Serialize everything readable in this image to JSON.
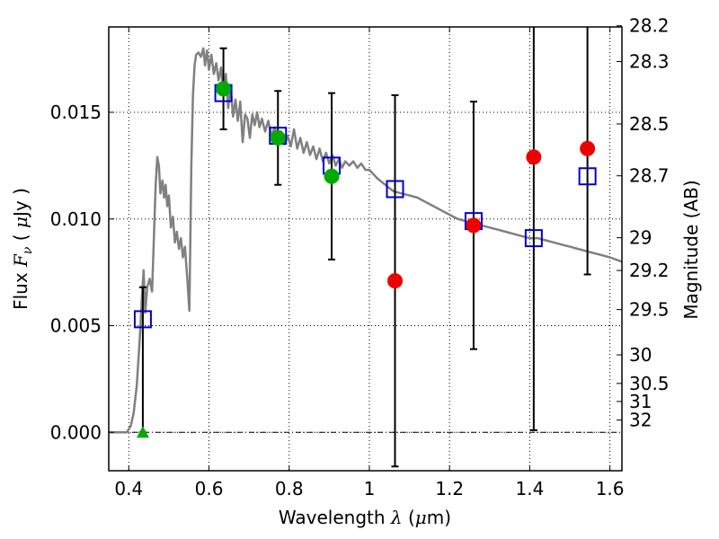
{
  "chart_data": {
    "type": "scatter",
    "title": "",
    "xlabel": {
      "text": "Wavelength",
      "symbol": "λ",
      "unit_prefix": "(",
      "unit_mu": "μ",
      "unit_suffix": "m)"
    },
    "ylabel": {
      "text": "Flux",
      "symbol": "F",
      "subscript": "ν",
      "unit_prefix": "( ",
      "unit_mu": "μ",
      "unit_suffix": "Jy )"
    },
    "y2label": "Magnitude (AB)",
    "xlim": [
      0.35,
      1.63
    ],
    "ylim": [
      -0.0018,
      0.019
    ],
    "grid": true,
    "x_ticks": [
      {
        "value": 0.4,
        "label": "0.4"
      },
      {
        "value": 0.6,
        "label": "0.6"
      },
      {
        "value": 0.8,
        "label": "0.8"
      },
      {
        "value": 1.0,
        "label": "1"
      },
      {
        "value": 1.2,
        "label": "1.2"
      },
      {
        "value": 1.4,
        "label": "1.4"
      },
      {
        "value": 1.6,
        "label": "1.6"
      }
    ],
    "y_ticks": [
      {
        "value": 0.0,
        "label": "0.000"
      },
      {
        "value": 0.005,
        "label": "0.005"
      },
      {
        "value": 0.01,
        "label": "0.010"
      },
      {
        "value": 0.015,
        "label": "0.015"
      }
    ],
    "magnitude_ticks": [
      {
        "mag": 28.2,
        "label": "28.2"
      },
      {
        "mag": 28.3,
        "label": "28.3"
      },
      {
        "mag": 28.5,
        "label": "28.5"
      },
      {
        "mag": 28.7,
        "label": "28.7"
      },
      {
        "mag": 29.0,
        "label": "29"
      },
      {
        "mag": 29.2,
        "label": "29.2"
      },
      {
        "mag": 29.5,
        "label": "29.5"
      },
      {
        "mag": 30.0,
        "label": "30"
      },
      {
        "mag": 30.5,
        "label": "30.5"
      },
      {
        "mag": 31.0,
        "label": "31"
      },
      {
        "mag": 32.0,
        "label": "32"
      }
    ],
    "zero_line": {
      "y": 0.0,
      "style": "dash-dot"
    },
    "colors": {
      "model": "#808080",
      "model_photometry": "#0000cc",
      "detected": "#00aa00",
      "undetected": "#ee0000",
      "error_bars": "#000000"
    },
    "model_sed": [
      [
        0.35,
        0.0
      ],
      [
        0.395,
        0.0
      ],
      [
        0.405,
        0.0003
      ],
      [
        0.412,
        0.0009
      ],
      [
        0.42,
        0.0022
      ],
      [
        0.428,
        0.0046
      ],
      [
        0.433,
        0.0064
      ],
      [
        0.437,
        0.0076
      ],
      [
        0.441,
        0.0056
      ],
      [
        0.446,
        0.0068
      ],
      [
        0.452,
        0.0072
      ],
      [
        0.458,
        0.0066
      ],
      [
        0.462,
        0.0088
      ],
      [
        0.467,
        0.0116
      ],
      [
        0.471,
        0.0129
      ],
      [
        0.475,
        0.0125
      ],
      [
        0.479,
        0.0112
      ],
      [
        0.484,
        0.0118
      ],
      [
        0.488,
        0.011
      ],
      [
        0.492,
        0.0116
      ],
      [
        0.496,
        0.0106
      ],
      [
        0.5,
        0.0111
      ],
      [
        0.505,
        0.0096
      ],
      [
        0.51,
        0.0101
      ],
      [
        0.515,
        0.0089
      ],
      [
        0.52,
        0.0094
      ],
      [
        0.525,
        0.0086
      ],
      [
        0.53,
        0.0091
      ],
      [
        0.535,
        0.0082
      ],
      [
        0.54,
        0.0087
      ],
      [
        0.546,
        0.0072
      ],
      [
        0.551,
        0.0057
      ],
      [
        0.556,
        0.0125
      ],
      [
        0.56,
        0.0158
      ],
      [
        0.564,
        0.0172
      ],
      [
        0.568,
        0.0177
      ],
      [
        0.574,
        0.0178
      ],
      [
        0.58,
        0.0176
      ],
      [
        0.586,
        0.018
      ],
      [
        0.59,
        0.0172
      ],
      [
        0.595,
        0.0179
      ],
      [
        0.6,
        0.017
      ],
      [
        0.606,
        0.0177
      ],
      [
        0.612,
        0.0168
      ],
      [
        0.618,
        0.0173
      ],
      [
        0.624,
        0.0165
      ],
      [
        0.63,
        0.0171
      ],
      [
        0.636,
        0.0158
      ],
      [
        0.642,
        0.0168
      ],
      [
        0.648,
        0.0152
      ],
      [
        0.654,
        0.0162
      ],
      [
        0.66,
        0.0148
      ],
      [
        0.666,
        0.0156
      ],
      [
        0.672,
        0.0146
      ],
      [
        0.678,
        0.0155
      ],
      [
        0.684,
        0.0136
      ],
      [
        0.69,
        0.0149
      ],
      [
        0.696,
        0.0147
      ],
      [
        0.702,
        0.0138
      ],
      [
        0.708,
        0.0149
      ],
      [
        0.714,
        0.0144
      ],
      [
        0.72,
        0.015
      ],
      [
        0.726,
        0.0143
      ],
      [
        0.732,
        0.0147
      ],
      [
        0.74,
        0.0141
      ],
      [
        0.748,
        0.0146
      ],
      [
        0.756,
        0.0139
      ],
      [
        0.764,
        0.0143
      ],
      [
        0.772,
        0.0137
      ],
      [
        0.78,
        0.0141
      ],
      [
        0.788,
        0.0135
      ],
      [
        0.796,
        0.0139
      ],
      [
        0.804,
        0.0134
      ],
      [
        0.812,
        0.0142
      ],
      [
        0.82,
        0.0133
      ],
      [
        0.828,
        0.0138
      ],
      [
        0.836,
        0.0131
      ],
      [
        0.844,
        0.0136
      ],
      [
        0.852,
        0.013
      ],
      [
        0.86,
        0.0134
      ],
      [
        0.868,
        0.0128
      ],
      [
        0.876,
        0.0133
      ],
      [
        0.884,
        0.0127
      ],
      [
        0.892,
        0.0131
      ],
      [
        0.9,
        0.0126
      ],
      [
        0.908,
        0.013
      ],
      [
        0.916,
        0.0125
      ],
      [
        0.924,
        0.0128
      ],
      [
        0.932,
        0.0124
      ],
      [
        0.94,
        0.0127
      ],
      [
        0.95,
        0.0125
      ],
      [
        0.96,
        0.0127
      ],
      [
        0.97,
        0.0124
      ],
      [
        0.98,
        0.0126
      ],
      [
        0.99,
        0.0123
      ],
      [
        1.0,
        0.0123
      ],
      [
        1.02,
        0.0119
      ],
      [
        1.04,
        0.0116
      ],
      [
        1.06,
        0.0113
      ],
      [
        1.08,
        0.0112
      ],
      [
        1.1,
        0.0111
      ],
      [
        1.12,
        0.011
      ],
      [
        1.14,
        0.0108
      ],
      [
        1.16,
        0.0106
      ],
      [
        1.18,
        0.0104
      ],
      [
        1.2,
        0.0102
      ],
      [
        1.22,
        0.01
      ],
      [
        1.24,
        0.0099
      ],
      [
        1.26,
        0.0098
      ],
      [
        1.28,
        0.0097
      ],
      [
        1.3,
        0.0096
      ],
      [
        1.32,
        0.0095
      ],
      [
        1.34,
        0.0094
      ],
      [
        1.36,
        0.0093
      ],
      [
        1.38,
        0.0092
      ],
      [
        1.4,
        0.0091
      ],
      [
        1.42,
        0.0091
      ],
      [
        1.44,
        0.009
      ],
      [
        1.46,
        0.0089
      ],
      [
        1.48,
        0.0088
      ],
      [
        1.5,
        0.0087
      ],
      [
        1.52,
        0.0086
      ],
      [
        1.54,
        0.0085
      ],
      [
        1.56,
        0.0084
      ],
      [
        1.58,
        0.0083
      ],
      [
        1.6,
        0.0082
      ],
      [
        1.63,
        0.008
      ]
    ],
    "model_photometry": [
      {
        "x": 0.435,
        "y": 0.0053
      },
      {
        "x": 0.636,
        "y": 0.0159
      },
      {
        "x": 0.772,
        "y": 0.0139
      },
      {
        "x": 0.906,
        "y": 0.0125
      },
      {
        "x": 1.064,
        "y": 0.0114
      },
      {
        "x": 1.26,
        "y": 0.0099
      },
      {
        "x": 1.41,
        "y": 0.0091
      },
      {
        "x": 1.544,
        "y": 0.012
      }
    ],
    "observed_detected": [
      {
        "x": 0.636,
        "y": 0.0161,
        "err": 0.0019
      },
      {
        "x": 0.772,
        "y": 0.0138,
        "err": 0.0022
      },
      {
        "x": 0.906,
        "y": 0.012,
        "err": 0.0039
      }
    ],
    "observed_undetected": [
      {
        "x": 1.064,
        "y": 0.0071,
        "err": 0.0087
      },
      {
        "x": 1.26,
        "y": 0.0097,
        "err": 0.0058
      },
      {
        "x": 1.41,
        "y": 0.0129,
        "err": 0.0128
      },
      {
        "x": 1.544,
        "y": 0.0133,
        "err": 0.0059
      }
    ],
    "upper_limit": {
      "x": 0.435,
      "y": 0.0,
      "err_top": 0.0068
    }
  }
}
